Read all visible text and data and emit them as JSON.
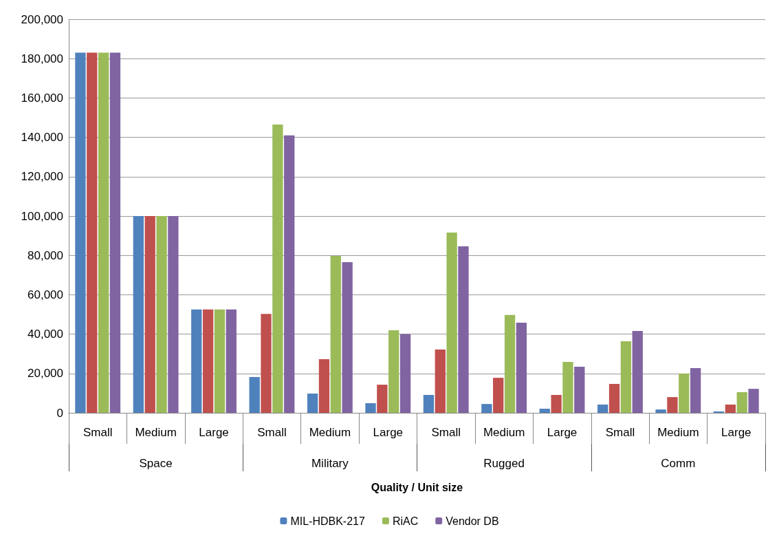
{
  "chart_data": {
    "type": "bar",
    "xlabel": "Quality / Unit size",
    "categories": [
      "Small",
      "Medium",
      "Large",
      "Small",
      "Medium",
      "Large",
      "Small",
      "Medium",
      "Large",
      "Small",
      "Medium",
      "Large"
    ],
    "annotations": [
      "Space",
      "Military",
      "Rugged",
      "Comm"
    ],
    "series": [
      {
        "name": "MIL-HDBK-217",
        "color": "#4f81bd",
        "values": [
          183000,
          100000,
          52500,
          18200,
          9800,
          4900,
          9100,
          4500,
          2100,
          4200,
          1700,
          700
        ]
      },
      {
        "color": "#c0504d",
        "values": [
          183000,
          100000,
          52500,
          50300,
          27300,
          14300,
          32200,
          17800,
          9100,
          14700,
          8000,
          4200
        ]
      },
      {
        "name": "RiAC",
        "color": "#9bbb59",
        "values": [
          183000,
          100000,
          52500,
          146500,
          79700,
          42000,
          91600,
          49700,
          25900,
          36400,
          20000,
          10500
        ]
      },
      {
        "name": "Vendor DB",
        "color": "#8064a2",
        "values": [
          183000,
          100000,
          52500,
          141000,
          76600,
          40000,
          84600,
          45800,
          23400,
          41600,
          22700,
          12200
        ]
      }
    ],
    "ylim": [
      0,
      200000
    ],
    "yticks": [
      {
        "value": 0,
        "label": "0"
      },
      {
        "value": 20000,
        "label": "20,000"
      },
      {
        "value": 40000,
        "label": "40,000"
      },
      {
        "value": 60000,
        "label": "60,000"
      },
      {
        "value": 80000,
        "label": "80,000"
      },
      {
        "value": 100000,
        "label": "100,000"
      },
      {
        "value": 120000,
        "label": "120,000"
      },
      {
        "value": 140000,
        "label": "140,000"
      },
      {
        "value": 160000,
        "label": "160,000"
      },
      {
        "value": 180000,
        "label": "180,000"
      },
      {
        "value": 200000,
        "label": "200,000"
      }
    ],
    "grid": "y",
    "legend": "bottom"
  }
}
